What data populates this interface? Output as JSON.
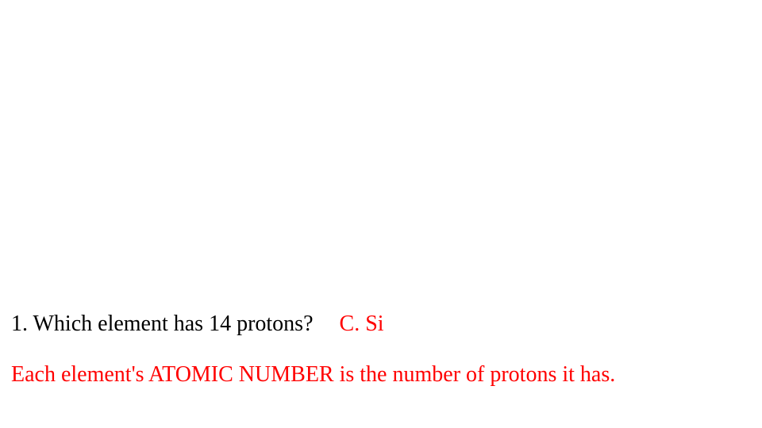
{
  "slide": {
    "question_number": "1.",
    "question_text": "Which element has 14 protons?",
    "answer_label": "C. Si",
    "explanation": "Each element's ATOMIC NUMBER is the number of protons it has.",
    "colors": {
      "background": "#ffffff",
      "question_color": "#000000",
      "answer_color": "#ff0000",
      "explanation_color": "#ff0000"
    },
    "typography": {
      "font_family": "Times New Roman",
      "font_size_pt": 21
    }
  }
}
